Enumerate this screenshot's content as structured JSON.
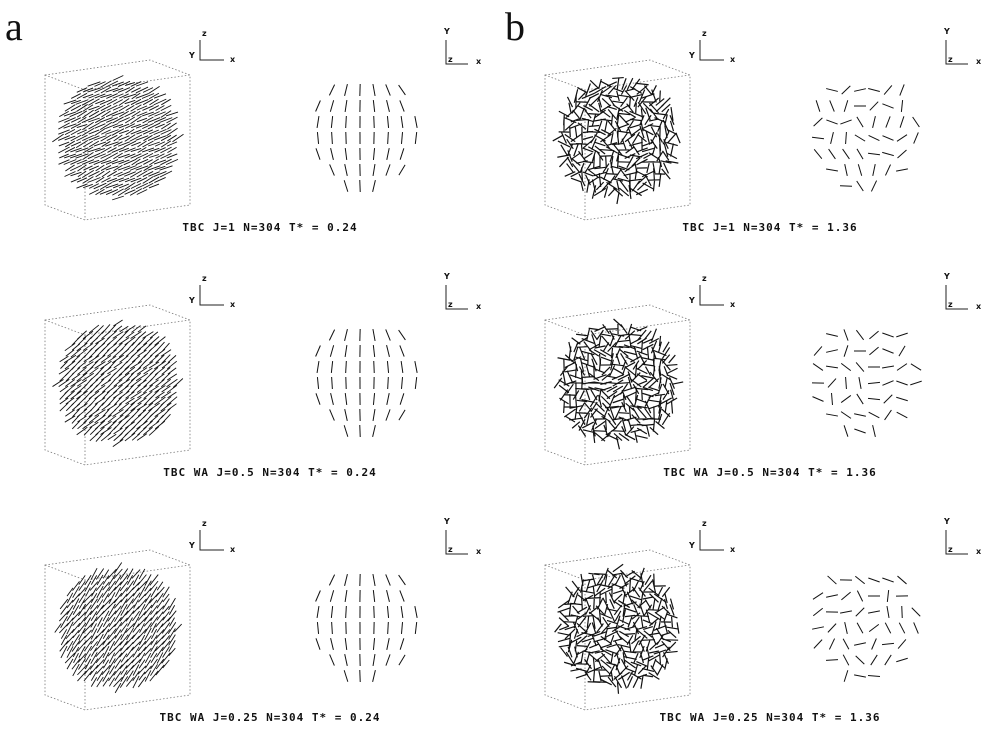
{
  "panels": [
    {
      "label": "a",
      "rows": [
        {
          "caption": "TBC  J=1  N=304   T* = 0.24"
        },
        {
          "caption": "TBC WA J=0.5 N=304   T* = 0.24"
        },
        {
          "caption": "TBC WA J=0.25 N=304   T* = 0.24"
        }
      ]
    },
    {
      "label": "b",
      "rows": [
        {
          "caption": "TBC  J=1  N=304   T* = 1.36"
        },
        {
          "caption": "TBC  WA  J=0.5 N=304   T* = 1.36"
        },
        {
          "caption": "TBC  WA  J=0.25 N=304   T* = 1.36"
        }
      ]
    }
  ],
  "triad_3d": {
    "up": "z",
    "left": "Y",
    "right": "x"
  },
  "triad_2d": {
    "up": "Y",
    "corner": "z",
    "right": "x"
  }
}
